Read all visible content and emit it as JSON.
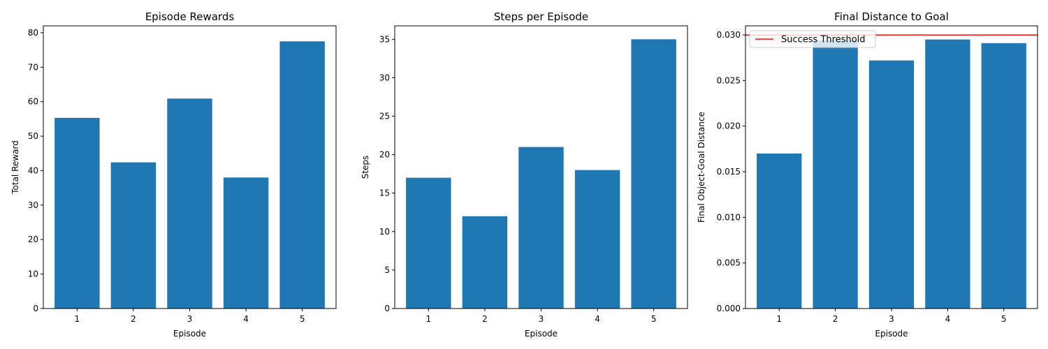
{
  "chart_data": [
    {
      "type": "bar",
      "title": "Episode Rewards",
      "xlabel": "Episode",
      "ylabel": "Total Reward",
      "categories": [
        "1",
        "2",
        "3",
        "4",
        "5"
      ],
      "values": [
        55.3,
        42.4,
        60.9,
        38.0,
        77.5
      ],
      "ylim": [
        0,
        82
      ],
      "yticks": [
        "0",
        "10",
        "20",
        "30",
        "40",
        "50",
        "60",
        "70",
        "80"
      ],
      "ytick_values": [
        0,
        10,
        20,
        30,
        40,
        50,
        60,
        70,
        80
      ],
      "bar_color": "#1f77b4",
      "grid": false
    },
    {
      "type": "bar",
      "title": "Steps per Episode",
      "xlabel": "Episode",
      "ylabel": "Steps",
      "categories": [
        "1",
        "2",
        "3",
        "4",
        "5"
      ],
      "values": [
        17,
        12,
        21,
        18,
        35
      ],
      "ylim": [
        0,
        36.75
      ],
      "yticks": [
        "0",
        "5",
        "10",
        "15",
        "20",
        "25",
        "30",
        "35"
      ],
      "ytick_values": [
        0,
        5,
        10,
        15,
        20,
        25,
        30,
        35
      ],
      "bar_color": "#1f77b4",
      "grid": false
    },
    {
      "type": "bar",
      "title": "Final Distance to Goal",
      "xlabel": "Episode",
      "ylabel": "Final Object-Goal Distance",
      "categories": [
        "1",
        "2",
        "3",
        "4",
        "5"
      ],
      "values": [
        0.017,
        0.0294,
        0.0272,
        0.0295,
        0.0291
      ],
      "ylim": [
        0,
        0.031
      ],
      "yticks": [
        "0.000",
        "0.005",
        "0.010",
        "0.015",
        "0.020",
        "0.025",
        "0.030"
      ],
      "ytick_values": [
        0,
        0.005,
        0.01,
        0.015,
        0.02,
        0.025,
        0.03
      ],
      "bar_color": "#1f77b4",
      "grid": false,
      "threshold": {
        "value": 0.03,
        "color": "#ff0000",
        "label": "Success Threshold"
      },
      "legend": {
        "placement": "top-left",
        "entries": [
          "Success Threshold"
        ]
      }
    }
  ]
}
